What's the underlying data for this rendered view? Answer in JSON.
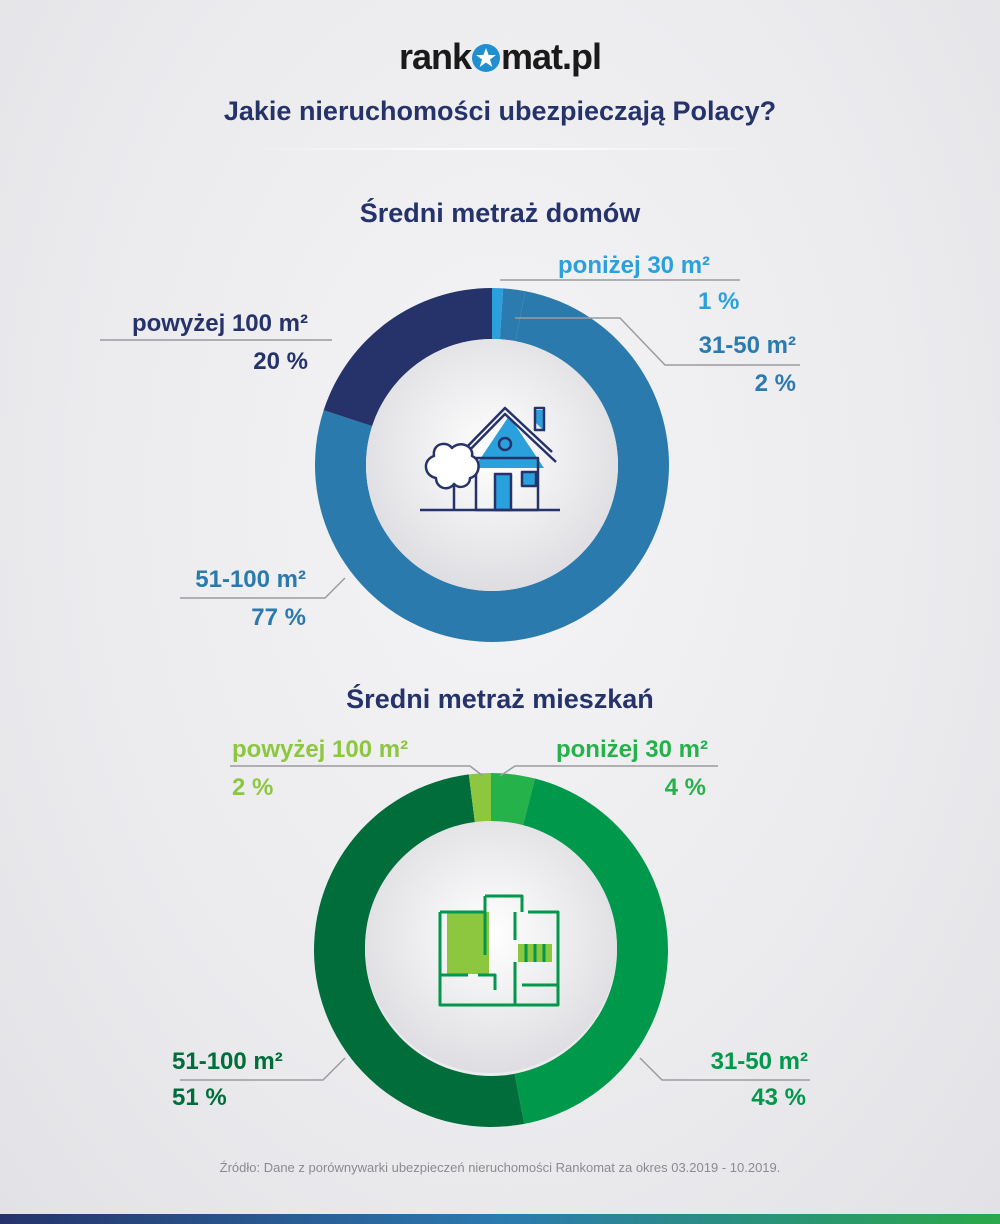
{
  "header": {
    "logo_text_left": "rank",
    "logo_text_right": "mat.pl",
    "title": "Jakie nieruchomości ubezpieczają Polacy?"
  },
  "footer": {
    "source": "Źródło: Dane z porównywarki ubezpieczeń nieruchomości Rankomat za okres 03.2019 - 10.2019."
  },
  "icons": [
    "star-icon",
    "house-icon",
    "floor-plan-icon"
  ],
  "chart_data": [
    {
      "type": "pie",
      "title": "Średni metraż domów",
      "series": [
        {
          "label": "poniżej 30 m²",
          "value_label": "1 %",
          "value": 1,
          "color": "#2aa1dc"
        },
        {
          "label": "31-50 m²",
          "value_label": "2 %",
          "value": 2,
          "color": "#2b7ab0"
        },
        {
          "label": "51-100 m²",
          "value_label": "77 %",
          "value": 77,
          "color": "#2b7aad"
        },
        {
          "label": "powyżej 100 m²",
          "value_label": "20 %",
          "value": 20,
          "color": "#26336b"
        }
      ]
    },
    {
      "type": "pie",
      "title": "Średni metraż mieszkań",
      "series": [
        {
          "label": "poniżej 30 m²",
          "value_label": "4 %",
          "value": 4,
          "color": "#26b24b"
        },
        {
          "label": "31-50 m²",
          "value_label": "43 %",
          "value": 43,
          "color": "#00984a"
        },
        {
          "label": "51-100 m²",
          "value_label": "51 %",
          "value": 51,
          "color": "#006d3b"
        },
        {
          "label": "powyżej  100 m²",
          "value_label": "2 %",
          "value": 2,
          "color": "#8dc63f"
        }
      ]
    }
  ]
}
